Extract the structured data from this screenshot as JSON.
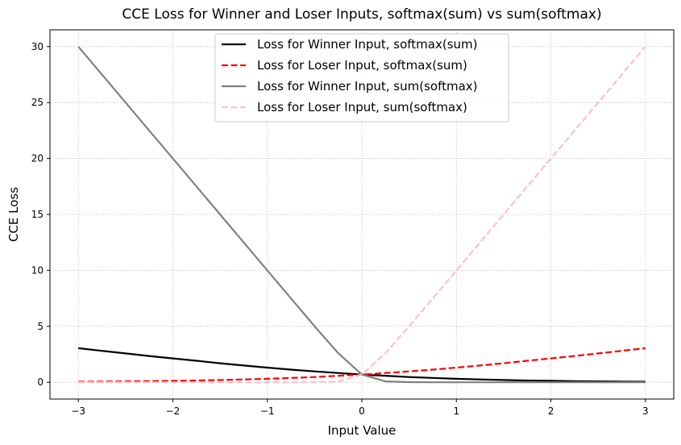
{
  "chart_data": {
    "type": "line",
    "title": "CCE Loss for Winner and Loser Inputs, softmax(sum) vs sum(softmax)",
    "xlabel": "Input Value",
    "ylabel": "CCE Loss",
    "xlim": [
      -3.3,
      3.3
    ],
    "ylim": [
      -1.5,
      31.5
    ],
    "xticks": [
      -3,
      -2,
      -1,
      0,
      1,
      2,
      3
    ],
    "xtick_labels": [
      "−3",
      "−2",
      "−1",
      "0",
      "1",
      "2",
      "3"
    ],
    "yticks": [
      0,
      5,
      10,
      15,
      20,
      25,
      30
    ],
    "ytick_labels": [
      "0",
      "5",
      "10",
      "15",
      "20",
      "25",
      "30"
    ],
    "grid": true,
    "legend_position": "top-center",
    "x": [
      -3,
      -2.75,
      -2.5,
      -2.25,
      -2,
      -1.75,
      -1.5,
      -1.25,
      -1,
      -0.75,
      -0.5,
      -0.25,
      0,
      0.25,
      0.5,
      0.75,
      1,
      1.25,
      1.5,
      1.75,
      2,
      2.25,
      2.5,
      2.75,
      3
    ],
    "series": [
      {
        "name": "Loss for Winner Input, softmax(sum)",
        "color": "#000000",
        "style": "solid",
        "values": [
          3.05,
          2.81,
          2.58,
          2.35,
          2.13,
          1.92,
          1.7,
          1.5,
          1.31,
          1.13,
          0.97,
          0.83,
          0.69,
          0.58,
          0.47,
          0.39,
          0.31,
          0.25,
          0.2,
          0.16,
          0.13,
          0.1,
          0.08,
          0.06,
          0.05
        ]
      },
      {
        "name": "Loss for Loser Input, softmax(sum)",
        "color": "#ff0000",
        "style": "dashed",
        "values": [
          0.05,
          0.06,
          0.08,
          0.1,
          0.13,
          0.16,
          0.2,
          0.25,
          0.31,
          0.39,
          0.47,
          0.58,
          0.69,
          0.83,
          0.97,
          1.13,
          1.31,
          1.5,
          1.7,
          1.92,
          2.13,
          2.35,
          2.58,
          2.81,
          3.05
        ]
      },
      {
        "name": "Loss for Winner Input, sum(softmax)",
        "color": "#808080",
        "style": "solid",
        "values": [
          30.0,
          27.5,
          25.0,
          22.5,
          20.0,
          17.5,
          15.0,
          12.5,
          10.0,
          7.5,
          5.0,
          2.6,
          0.69,
          0.08,
          0.01,
          0.0,
          0.0,
          0.0,
          0.0,
          0.0,
          0.0,
          0.0,
          0.0,
          0.0,
          0.0
        ]
      },
      {
        "name": "Loss for Loser Input, sum(softmax)",
        "color": "#ffc0cb",
        "style": "dashed",
        "values": [
          0.0,
          0.0,
          0.0,
          0.0,
          0.0,
          0.0,
          0.0,
          0.0,
          0.0,
          0.0,
          0.01,
          0.08,
          0.69,
          2.6,
          5.0,
          7.5,
          10.0,
          12.5,
          15.0,
          17.5,
          20.0,
          22.5,
          25.0,
          27.5,
          30.0
        ]
      }
    ]
  }
}
